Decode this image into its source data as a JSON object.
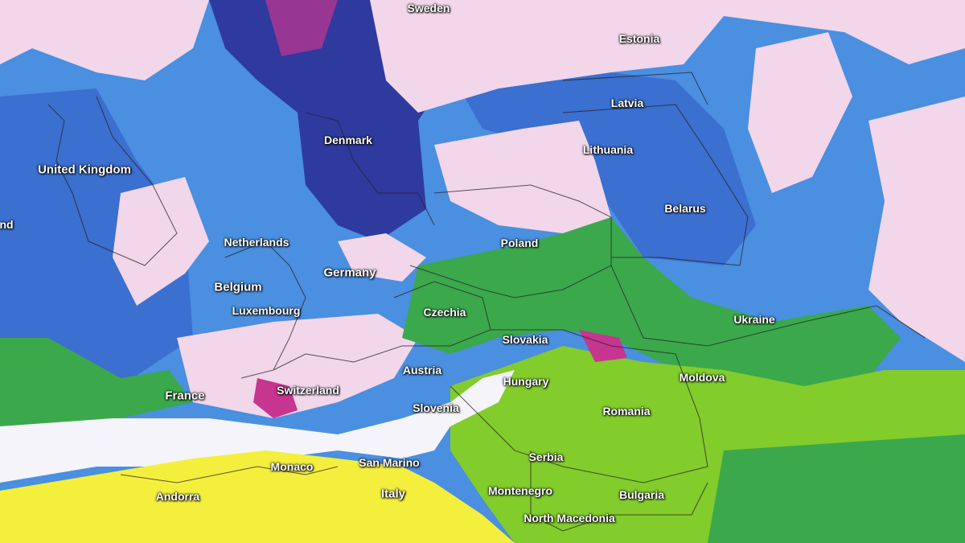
{
  "colors": {
    "dark_blue": "#2e3a9e",
    "blue": "#3b6fd0",
    "light_blue": "#4a90e2",
    "pink": "#f2d6ea",
    "magenta": "#c6358f",
    "white": "#f4f4fa",
    "green": "#3ba84c",
    "light_green": "#82cc2c",
    "yellow": "#f4ef3c"
  },
  "labels": [
    {
      "name": "Sweden",
      "text": "Sweden"
    },
    {
      "name": "Estonia",
      "text": "Estonia"
    },
    {
      "name": "Latvia",
      "text": "Latvia"
    },
    {
      "name": "Lithuania",
      "text": "Lithuania"
    },
    {
      "name": "Denmark",
      "text": "Denmark"
    },
    {
      "name": "United Kingdom",
      "text": "United Kingdom"
    },
    {
      "name": "Ireland",
      "text": "nd"
    },
    {
      "name": "Belarus",
      "text": "Belarus"
    },
    {
      "name": "Poland",
      "text": "Poland"
    },
    {
      "name": "Netherlands",
      "text": "Netherlands"
    },
    {
      "name": "Germany",
      "text": "Germany"
    },
    {
      "name": "Belgium",
      "text": "Belgium"
    },
    {
      "name": "Luxembourg",
      "text": "Luxembourg"
    },
    {
      "name": "Czechia",
      "text": "Czechia"
    },
    {
      "name": "Ukraine",
      "text": "Ukraine"
    },
    {
      "name": "Slovakia",
      "text": "Slovakia"
    },
    {
      "name": "Austria",
      "text": "Austria"
    },
    {
      "name": "Moldova",
      "text": "Moldova"
    },
    {
      "name": "Hungary",
      "text": "Hungary"
    },
    {
      "name": "France",
      "text": "France"
    },
    {
      "name": "Switzerland",
      "text": "Switzerland"
    },
    {
      "name": "Slovenia",
      "text": "Slovenia"
    },
    {
      "name": "Romania",
      "text": "Romania"
    },
    {
      "name": "Serbia",
      "text": "Serbia"
    },
    {
      "name": "Monaco",
      "text": "Monaco"
    },
    {
      "name": "San Marino",
      "text": "San Marino"
    },
    {
      "name": "Italy",
      "text": "Italy"
    },
    {
      "name": "Andorra",
      "text": "Andorra"
    },
    {
      "name": "Montenegro",
      "text": "Montenegro"
    },
    {
      "name": "Bulgaria",
      "text": "Bulgaria"
    },
    {
      "name": "North Macedonia",
      "text": "North Macedonia"
    }
  ]
}
